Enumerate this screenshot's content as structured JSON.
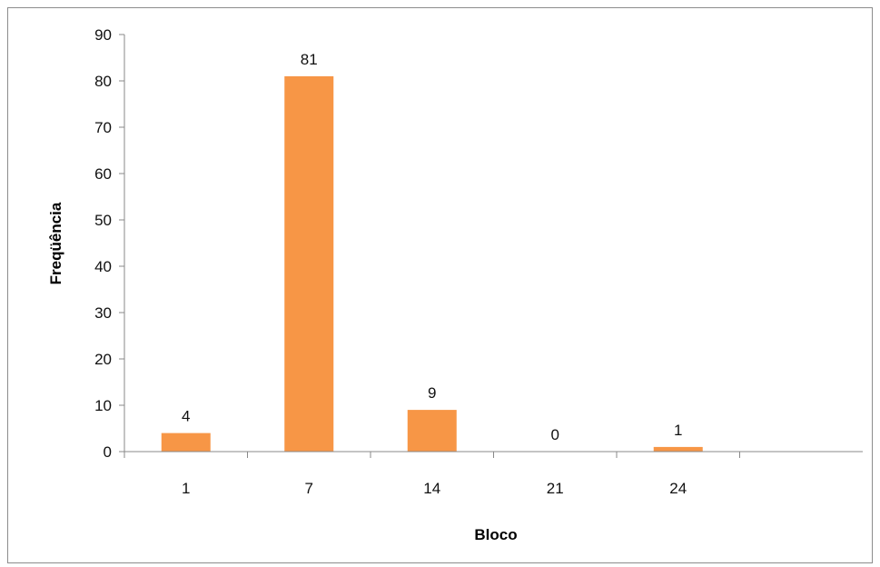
{
  "chart_data": {
    "type": "bar",
    "categories": [
      "1",
      "7",
      "14",
      "21",
      "24"
    ],
    "values": [
      4,
      81,
      9,
      0,
      1
    ],
    "data_labels": [
      "4",
      "81",
      "9",
      "0",
      "1"
    ],
    "xlabel": "Bloco",
    "ylabel": "Freqüência",
    "ylim": [
      0,
      90
    ],
    "yticks": [
      0,
      10,
      20,
      30,
      40,
      50,
      60,
      70,
      80,
      90
    ],
    "grid": false,
    "legend": "none",
    "bar_color": "#F79646"
  }
}
